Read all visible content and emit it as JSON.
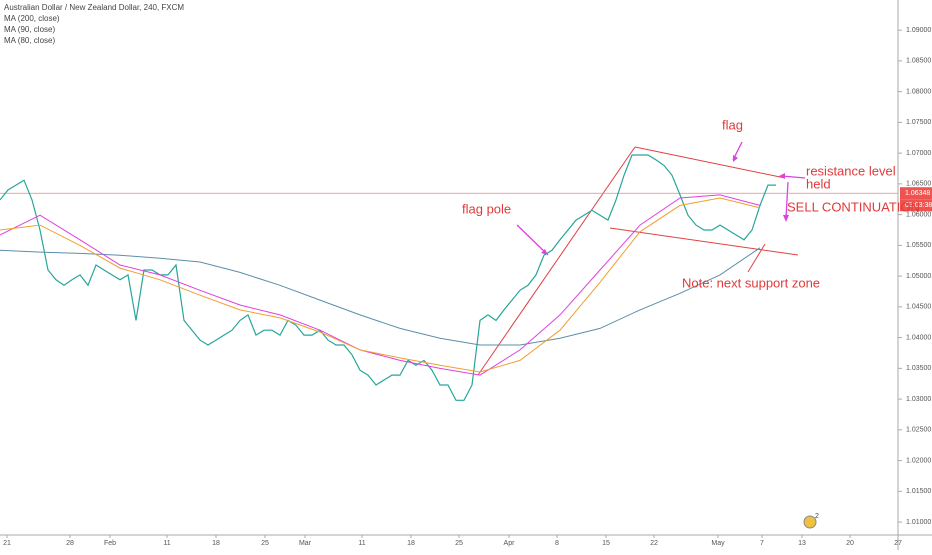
{
  "chart_data": {
    "type": "line",
    "title": "Australian Dollar / New Zealand Dollar, 240, FXCM",
    "series": [
      {
        "color": "#26a69a",
        "values": [
          1.0624,
          1.064,
          1.0648,
          1.0656,
          1.0624,
          1.0575,
          1.051,
          1.0494,
          1.0485,
          1.0494,
          1.0502,
          1.0485,
          1.0518,
          1.051,
          1.0502,
          1.0494,
          1.0502,
          1.0428,
          1.051,
          1.051,
          1.0502,
          1.0502,
          1.0518,
          1.0428,
          1.0412,
          1.0396,
          1.0388,
          1.0396,
          1.0404,
          1.0412,
          1.0428,
          1.0437,
          1.0404,
          1.0412,
          1.0412,
          1.0404,
          1.0428,
          1.042,
          1.0404,
          1.0404,
          1.0412,
          1.0396,
          1.0388,
          1.0388,
          1.0372,
          1.0347,
          1.0339,
          1.0323,
          1.0331,
          1.0339,
          1.0339,
          1.0363,
          1.0355,
          1.0363,
          1.0347,
          1.0323,
          1.0323,
          1.0298,
          1.0298,
          1.0323,
          1.0428,
          1.0437,
          1.0428,
          1.0445,
          1.0461,
          1.0477,
          1.0485,
          1.0502,
          1.0534,
          1.0542,
          1.0559,
          1.0575,
          1.0591,
          1.0599,
          1.0607,
          1.0599,
          1.0591,
          1.0624,
          1.0664,
          1.0697,
          1.0697,
          1.0697,
          1.0689,
          1.068,
          1.0664,
          1.0632,
          1.0599,
          1.0583,
          1.0575,
          1.0575,
          1.0583,
          1.0575,
          1.0567,
          1.0559,
          1.0575,
          1.0615,
          1.0648,
          1.0648
        ]
      },
      {
        "name": "MA (200, close)",
        "color": "#5b8fa8",
        "x": [
          0,
          5,
          10,
          15,
          20,
          25,
          30,
          35,
          40,
          45,
          50,
          55,
          60,
          65,
          70,
          75,
          80,
          85,
          90,
          95
        ],
        "values": [
          1.0542,
          1.0539,
          1.0537,
          1.0534,
          1.0529,
          1.0523,
          1.0506,
          1.0485,
          1.0461,
          1.0437,
          1.0415,
          1.0399,
          1.0388,
          1.0388,
          1.0399,
          1.0415,
          1.0445,
          1.0472,
          1.0502,
          1.0546
        ]
      },
      {
        "name": "MA (90, close)",
        "color": "#e040e0",
        "x": [
          0,
          5,
          10,
          15,
          20,
          25,
          30,
          35,
          40,
          45,
          50,
          55,
          60,
          65,
          70,
          75,
          80,
          85,
          90,
          95
        ],
        "values": [
          1.0567,
          1.0599,
          1.0559,
          1.0518,
          1.0502,
          1.0477,
          1.0453,
          1.0437,
          1.0412,
          1.038,
          1.0363,
          1.035,
          1.0339,
          1.038,
          1.0437,
          1.051,
          1.0583,
          1.0627,
          1.0632,
          1.0615
        ]
      },
      {
        "name": "MA (80, close)",
        "color": "#f0a030",
        "x": [
          0,
          5,
          10,
          15,
          20,
          25,
          30,
          35,
          40,
          45,
          50,
          55,
          60,
          65,
          70,
          75,
          80,
          85,
          90,
          95
        ],
        "values": [
          1.0575,
          1.0583,
          1.055,
          1.0513,
          1.0494,
          1.0469,
          1.0445,
          1.0432,
          1.0409,
          1.038,
          1.0367,
          1.0355,
          1.0344,
          1.0363,
          1.0412,
          1.049,
          1.0572,
          1.0615,
          1.0627,
          1.0611
        ]
      }
    ],
    "xlim": [
      0,
      112.5
    ],
    "xticks": [
      {
        "value": 0.875,
        "label": "21"
      },
      {
        "value": 8.75,
        "label": "28"
      },
      {
        "value": 13.75,
        "label": "Feb"
      },
      {
        "value": 20.875,
        "label": "11"
      },
      {
        "value": 27,
        "label": "18"
      },
      {
        "value": 33.125,
        "label": "25"
      },
      {
        "value": 38.125,
        "label": "Mar"
      },
      {
        "value": 45.25,
        "label": "11"
      },
      {
        "value": 51.375,
        "label": "18"
      },
      {
        "value": 57.375,
        "label": "25"
      },
      {
        "value": 63.625,
        "label": "Apr"
      },
      {
        "value": 69.625,
        "label": "8"
      },
      {
        "value": 75.75,
        "label": "15"
      },
      {
        "value": 81.75,
        "label": "22"
      },
      {
        "value": 89.75,
        "label": "May"
      },
      {
        "value": 95.25,
        "label": "7"
      },
      {
        "value": 100.25,
        "label": "13"
      },
      {
        "value": 106.25,
        "label": "20"
      },
      {
        "value": 112.25,
        "label": "27"
      }
    ],
    "ylim": [
      1.0079,
      1.0949
    ],
    "yticks": [
      {
        "value": 1.01,
        "label": "1.01000"
      },
      {
        "value": 1.015,
        "label": "1.01500"
      },
      {
        "value": 1.02,
        "label": "1.02000"
      },
      {
        "value": 1.025,
        "label": "1.02500"
      },
      {
        "value": 1.03,
        "label": "1.03000"
      },
      {
        "value": 1.035,
        "label": "1.03500"
      },
      {
        "value": 1.04,
        "label": "1.04000"
      },
      {
        "value": 1.045,
        "label": "1.04500"
      },
      {
        "value": 1.05,
        "label": "1.05000"
      },
      {
        "value": 1.055,
        "label": "1.05500"
      },
      {
        "value": 1.06,
        "label": "1.06000"
      },
      {
        "value": 1.065,
        "label": "1.06500"
      },
      {
        "value": 1.07,
        "label": "1.07000"
      },
      {
        "value": 1.075,
        "label": "1.07500"
      },
      {
        "value": 1.08,
        "label": "1.08000"
      },
      {
        "value": 1.085,
        "label": "1.08500"
      },
      {
        "value": 1.09,
        "label": "1.09000"
      }
    ],
    "last_price": {
      "value": 1.06348,
      "label": "1.06348"
    },
    "countdown": "03:03:38",
    "annotations": [
      "flag",
      "flag pole",
      "resistance level",
      "held",
      "SELL CONTINUATION",
      "Note: next support zone"
    ],
    "marker_count": "2"
  }
}
